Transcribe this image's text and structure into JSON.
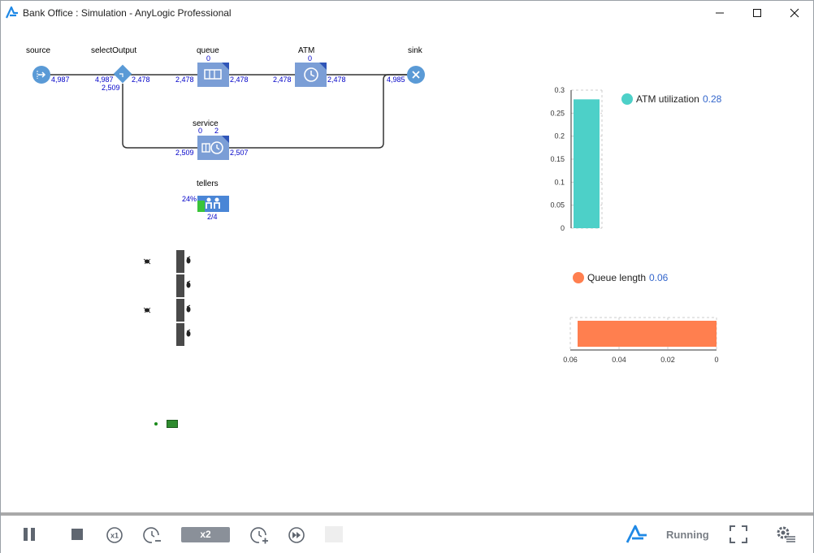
{
  "window": {
    "title": "Bank Office : Simulation - AnyLogic Professional",
    "minimize_icon": "minimize-icon",
    "maximize_icon": "maximize-icon",
    "close_icon": "close-icon"
  },
  "flowchart": {
    "source": {
      "label": "source",
      "out": "4,987"
    },
    "selectOutput": {
      "label": "selectOutput",
      "in": "4,987",
      "out_true": "2,478",
      "out_false": "2,509"
    },
    "queue": {
      "label": "queue",
      "count": "0",
      "in": "2,478",
      "out": "2,478"
    },
    "atm": {
      "label": "ATM",
      "count": "0",
      "in": "2,478",
      "out": "2,478"
    },
    "sink": {
      "label": "sink",
      "in": "4,985"
    },
    "service": {
      "label": "service",
      "queue_count": "0",
      "delay_count": "2",
      "in": "2,509",
      "out": "2,507"
    },
    "tellers": {
      "label": "tellers",
      "utilization": "24%",
      "busy": "2/4"
    }
  },
  "charts": {
    "atm": {
      "legend_label": "ATM utilization",
      "legend_value": "0.28",
      "color": "#4dd0c8",
      "ticks": [
        "0.3",
        "0.25",
        "0.2",
        "0.15",
        "0.1",
        "0.05",
        "0"
      ]
    },
    "queue": {
      "legend_label": "Queue length",
      "legend_value": "0.06",
      "color": "#ff7f4f",
      "ticks": [
        "0.06",
        "0.04",
        "0.02",
        "0"
      ]
    }
  },
  "chart_data": [
    {
      "type": "bar",
      "series": [
        {
          "name": "ATM utilization",
          "values": [
            0.28
          ]
        }
      ],
      "ylim": [
        0,
        0.3
      ],
      "orientation": "vertical"
    },
    {
      "type": "bar",
      "series": [
        {
          "name": "Queue length",
          "values": [
            0.06
          ]
        }
      ],
      "xlim": [
        0.06,
        0
      ],
      "orientation": "horizontal"
    }
  ],
  "toolbar": {
    "speed_label": "x2",
    "status": "Running",
    "icons": [
      "pause-icon",
      "stop-icon",
      "realtime-x1-icon",
      "slow-down-icon",
      "speed-up-icon",
      "fast-forward-icon",
      "anylogic-logo-icon",
      "fullscreen-icon",
      "settings-icon"
    ]
  }
}
